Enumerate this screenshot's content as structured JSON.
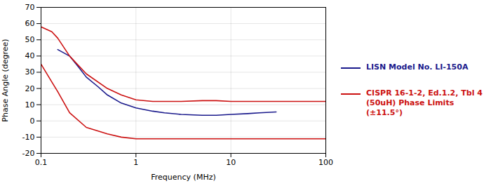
{
  "chart_data": {
    "type": "line",
    "xlabel": "Frequency (MHz)",
    "ylabel": "Phase Angle (degree)",
    "log": "x",
    "xlim": [
      0.1,
      100
    ],
    "xticks": [
      0.1,
      1,
      10,
      100
    ],
    "ylim": [
      -20,
      70
    ],
    "yticks": [
      -20,
      -10,
      0,
      10,
      20,
      30,
      40,
      50,
      60,
      70
    ],
    "grid": true,
    "legend": "right",
    "series": [
      {
        "name": "LISN Model No. LI-150A",
        "color": "#1a1a8c",
        "x": [
          0.15,
          0.2,
          0.25,
          0.3,
          0.4,
          0.5,
          0.7,
          1.0,
          1.5,
          2.0,
          3.0,
          5.0,
          7.0,
          10.0,
          15.0,
          20.0,
          30.0
        ],
        "values": [
          44,
          40,
          33,
          27,
          21,
          16,
          11,
          8,
          6,
          5,
          4,
          3.5,
          3.5,
          4,
          4.5,
          5,
          5.5
        ]
      },
      {
        "name": "CISPR 16-1-2, Ed.1.2, Tbl 4\n(50uH) Phase Limits\n(±11.5°)",
        "color": "#cc1111",
        "x": [
          0.1,
          0.13,
          0.15,
          0.2,
          0.3,
          0.5,
          0.7,
          1.0,
          1.5,
          2.0,
          3.0,
          5.0,
          7.0,
          10.0,
          15.0,
          20.0,
          30.0,
          100.0
        ],
        "values": [
          58,
          55,
          51,
          40,
          29,
          20,
          16,
          13,
          12,
          12,
          12,
          12.5,
          12.5,
          12,
          12,
          12,
          12,
          12
        ]
      },
      {
        "name": "CISPR 16-1-2, Ed.1.2, Tbl 4\n(50uH) Phase Limits\n(±11.5°)",
        "color": "#cc1111",
        "x": [
          0.1,
          0.13,
          0.15,
          0.2,
          0.3,
          0.5,
          0.7,
          1.0,
          1.5,
          2.0,
          3.0,
          5.0,
          7.0,
          10.0,
          15.0,
          20.0,
          30.0,
          100.0
        ],
        "values": [
          35,
          24,
          18,
          5,
          -4,
          -8,
          -10,
          -11,
          -11,
          -11,
          -11,
          -11,
          -11,
          -11,
          -11,
          -11,
          -11,
          -11
        ]
      }
    ]
  }
}
